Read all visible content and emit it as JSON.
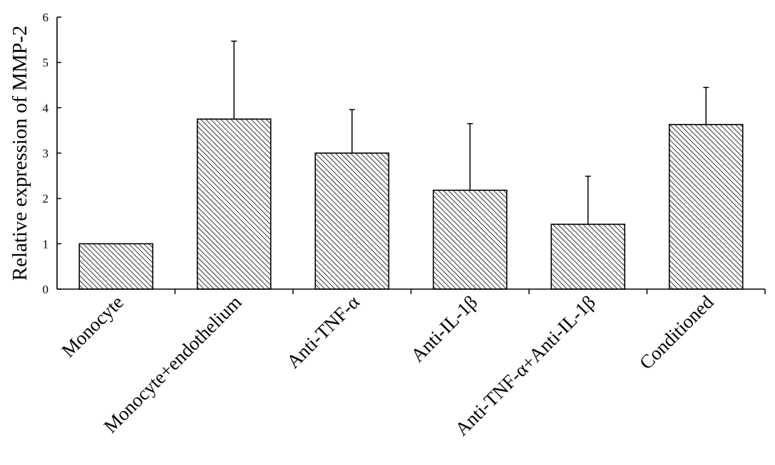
{
  "chart_data": {
    "type": "bar",
    "title": "",
    "xlabel": "",
    "ylabel": "Relative expression of MMP-2",
    "ylim": [
      0,
      6
    ],
    "yticks": [
      0,
      1,
      2,
      3,
      4,
      5,
      6
    ],
    "grid": false,
    "legend": "none",
    "bar_fill": "diagonal hatch",
    "categories": [
      "Monocyte",
      "Monocyte+endothelium",
      "Anti-TNF-α",
      "Anti-IL-1β",
      "Anti-TNF-α+Anti-IL-1β",
      "Conditioned"
    ],
    "values": [
      1.0,
      3.75,
      3.0,
      2.18,
      1.43,
      3.63
    ],
    "error_upper": [
      0,
      1.72,
      0.96,
      1.47,
      1.06,
      0.82
    ],
    "colors": {
      "bar_stroke": "#000000",
      "hatch": "#000000",
      "background": "#ffffff"
    }
  }
}
